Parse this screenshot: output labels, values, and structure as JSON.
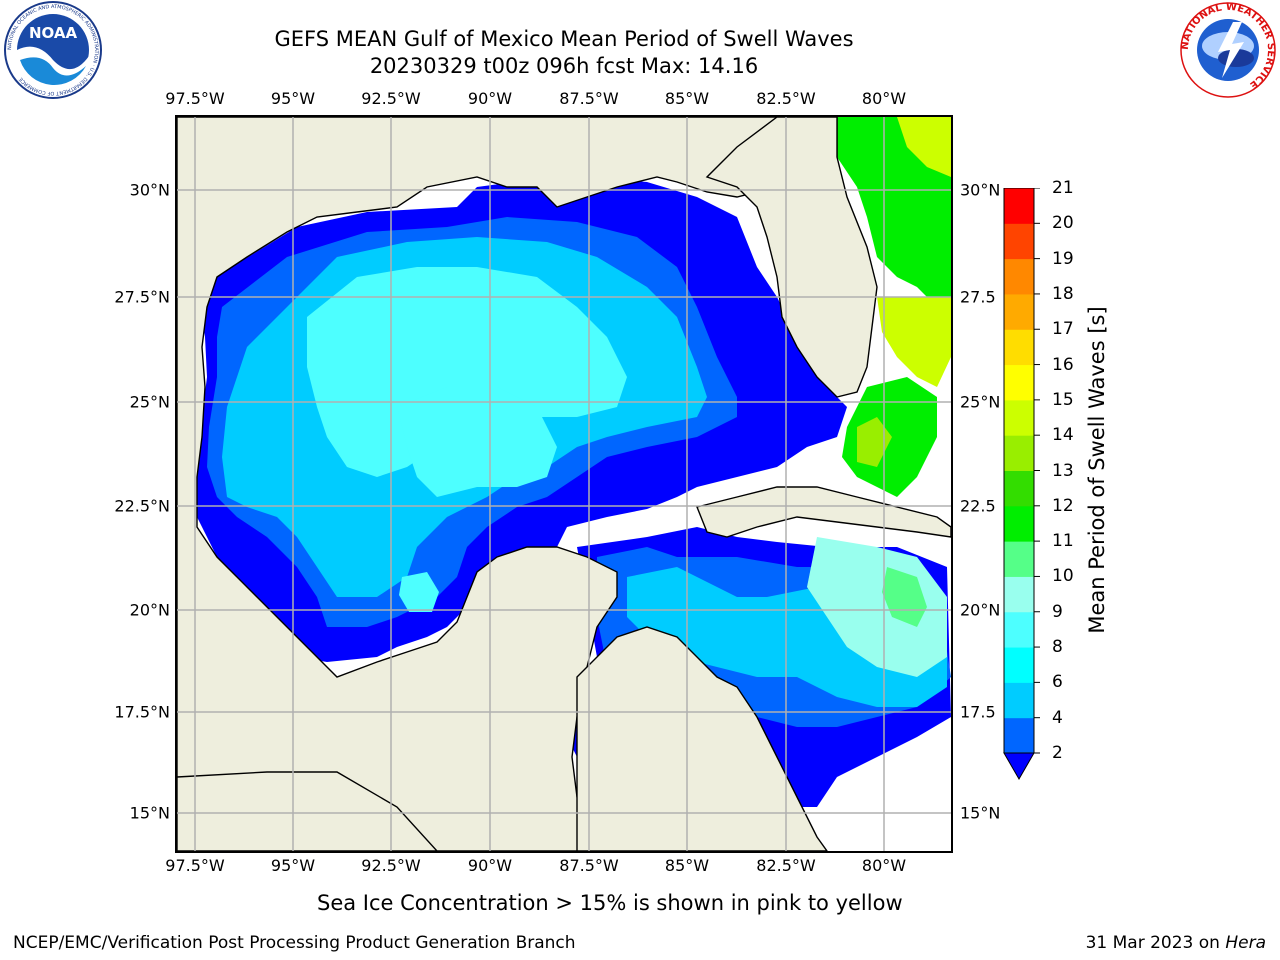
{
  "header": {
    "title_line1": "GEFS MEAN Gulf of Mexico Mean Period of Swell Waves",
    "title_line2": "20230329 t00z 096h fcst   Max: 14.16"
  },
  "map": {
    "lon_labels": [
      "97.5°W",
      "95°W",
      "92.5°W",
      "90°W",
      "87.5°W",
      "85°W",
      "82.5°W",
      "80°W"
    ],
    "lat_labels_left": [
      "30°N",
      "27.5°N",
      "25°N",
      "22.5°N",
      "20°N",
      "17.5°N",
      "15°N"
    ],
    "lat_labels_right": [
      "30°N",
      "27.5",
      "25°N",
      "22.5",
      "20°N",
      "17.5",
      "15°N"
    ],
    "land_color": "#eeeedd",
    "ocean_missing_color": "#ffffff"
  },
  "colorbar": {
    "title": "Mean Period of Swell Waves [s]",
    "ticks": [
      "2",
      "4",
      "6",
      "8",
      "9",
      "10",
      "11",
      "12",
      "13",
      "14",
      "15",
      "16",
      "17",
      "18",
      "19",
      "20",
      "21"
    ],
    "colors": [
      "#0000ff",
      "#0066ff",
      "#00ccff",
      "#00ffff",
      "#4dffff",
      "#99ffee",
      "#55ff88",
      "#00ee00",
      "#33dd00",
      "#99ee00",
      "#ccff00",
      "#ffff00",
      "#ffdd00",
      "#ffaa00",
      "#ff8800",
      "#ff4400",
      "#ff0000"
    ],
    "under_color": "#0000ff"
  },
  "footer": {
    "note": "Sea Ice Concentration > 15% is shown in pink to yellow",
    "credit": "NCEP/EMC/Verification Post Processing Product Generation Branch",
    "date": "31 Mar 2023 on ",
    "machine": "Hera"
  },
  "logos": {
    "left": "NOAA",
    "left_ring": "NATIONAL OCEANIC AND ATMOSPHERIC ADMINISTRATION · U.S. DEPARTMENT OF COMMERCE",
    "right_ring": "NATIONAL WEATHER SERVICE"
  }
}
